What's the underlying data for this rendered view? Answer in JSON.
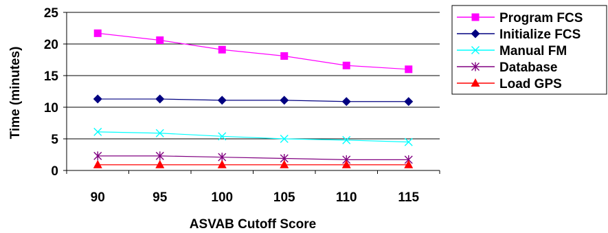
{
  "chart_data": {
    "type": "line",
    "title": "",
    "xlabel": "ASVAB Cutoff Score",
    "ylabel": "Time (minutes)",
    "categories": [
      "90",
      "95",
      "100",
      "105",
      "110",
      "115"
    ],
    "ylim": [
      0,
      25
    ],
    "yticks": [
      "0",
      "5",
      "10",
      "15",
      "20",
      "25"
    ],
    "grid": "horizontal",
    "legend_position": "right",
    "series": [
      {
        "name": "Program FCS",
        "values": [
          21.7,
          20.6,
          19.1,
          18.1,
          16.6,
          16.0
        ],
        "color": "#FF00FF",
        "marker": "square"
      },
      {
        "name": "Initialize FCS",
        "values": [
          11.3,
          11.3,
          11.1,
          11.1,
          10.9,
          10.9
        ],
        "color": "#000080",
        "marker": "diamond"
      },
      {
        "name": "Manual FM",
        "values": [
          6.1,
          5.9,
          5.4,
          5.0,
          4.8,
          4.5
        ],
        "color": "#00FFFF",
        "marker": "x"
      },
      {
        "name": "Database",
        "values": [
          2.3,
          2.3,
          2.1,
          1.9,
          1.7,
          1.7
        ],
        "color": "#800080",
        "marker": "asterisk"
      },
      {
        "name": "Load GPS",
        "values": [
          0.9,
          0.9,
          0.9,
          0.9,
          0.9,
          0.9
        ],
        "color": "#FF0000",
        "marker": "triangle"
      }
    ]
  }
}
